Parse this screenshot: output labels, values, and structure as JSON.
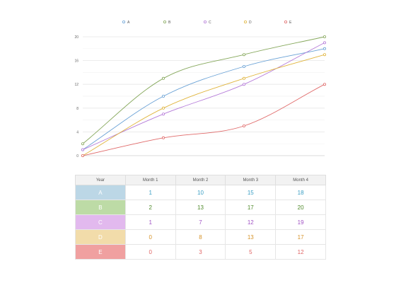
{
  "chart_data": {
    "type": "line",
    "categories": [
      "Month 1",
      "Month 2",
      "Month 3",
      "Month 4"
    ],
    "ylim": [
      0,
      20
    ],
    "yticks": [
      0,
      4,
      8,
      12,
      16,
      20
    ],
    "grid": true,
    "legend_position": "top",
    "curve": "smooth",
    "series": [
      {
        "name": "A",
        "color": "#6aa2d6",
        "values": [
          1,
          10,
          15,
          18
        ]
      },
      {
        "name": "B",
        "color": "#86a85c",
        "values": [
          2,
          13,
          17,
          20
        ]
      },
      {
        "name": "C",
        "color": "#b57bd9",
        "values": [
          1,
          7,
          12,
          19
        ]
      },
      {
        "name": "D",
        "color": "#e0b43c",
        "values": [
          0,
          8,
          13,
          17
        ]
      },
      {
        "name": "E",
        "color": "#e06a6a",
        "values": [
          0,
          3,
          5,
          12
        ]
      }
    ]
  },
  "table": {
    "header_label": "Year",
    "row_colors": {
      "A": "#bcd7e6",
      "B": "#bddba6",
      "C": "#e2b9ee",
      "D": "#f2dcaa",
      "E": "#f0a0a0"
    },
    "value_colors": {
      "A": "#3a9ec4",
      "B": "#4f8a2a",
      "C": "#a052c4",
      "D": "#d6932a",
      "E": "#e06666"
    }
  }
}
